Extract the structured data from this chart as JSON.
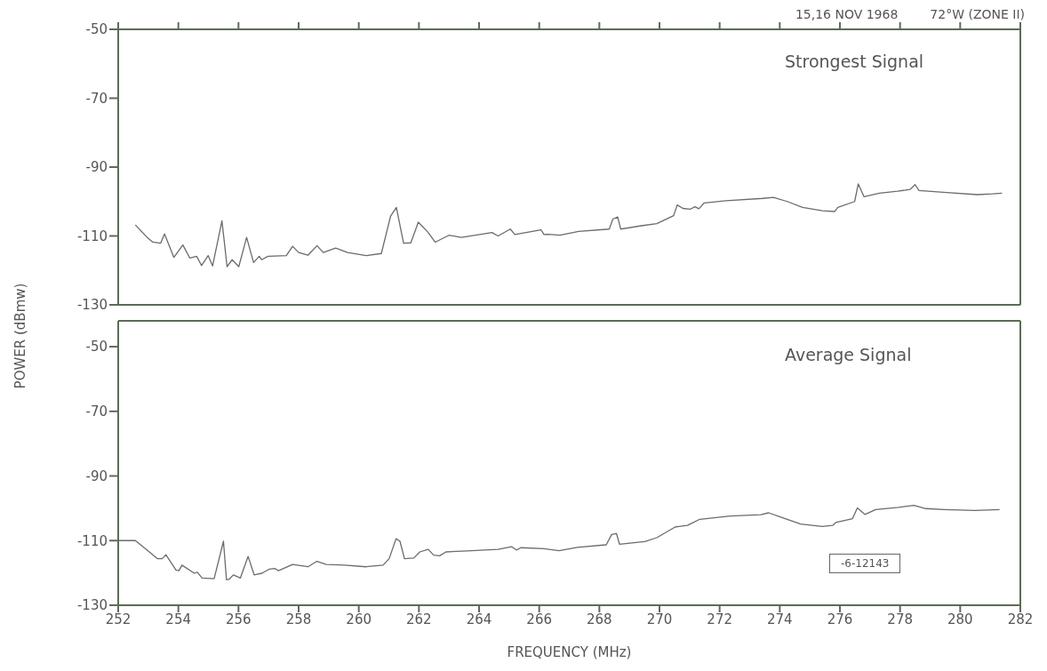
{
  "chart_data": [
    {
      "type": "line",
      "title": "Strongest Signal",
      "ylabel": "POWER (dBmw)",
      "annotations": [
        "15,16 NOV 1968",
        "72°W (ZONE II)"
      ],
      "color": "#6b6b6b",
      "xlim": [
        252,
        282
      ],
      "xticks": [
        252,
        254,
        256,
        258,
        260,
        262,
        264,
        266,
        268,
        270,
        272,
        274,
        276,
        278,
        280,
        282
      ],
      "ylim": [
        -130,
        -50
      ],
      "yticks": [
        -130,
        -110,
        -90,
        -70,
        -50
      ],
      "tick_labels": "y",
      "marker": "none",
      "x": [
        252.57,
        252.95,
        253.15,
        253.41,
        253.54,
        253.85,
        254.15,
        254.38,
        254.61,
        254.77,
        254.99,
        255.14,
        255.45,
        255.62,
        255.79,
        256.01,
        256.27,
        256.5,
        256.69,
        256.77,
        256.98,
        257.59,
        257.8,
        258.0,
        258.31,
        258.61,
        258.82,
        259.23,
        259.63,
        260.25,
        260.75,
        261.06,
        261.25,
        261.49,
        261.73,
        261.98,
        262.29,
        262.54,
        263.0,
        263.41,
        264.02,
        264.43,
        264.63,
        265.04,
        265.19,
        266.06,
        266.16,
        266.29,
        266.69,
        267.31,
        268.33,
        268.45,
        268.61,
        268.71,
        269.35,
        269.91,
        270.47,
        270.59,
        270.78,
        271.03,
        271.18,
        271.31,
        271.49,
        272.2,
        273.43,
        273.79,
        274.25,
        274.76,
        275.42,
        275.83,
        275.93,
        276.49,
        276.61,
        276.8,
        277.31,
        277.92,
        278.33,
        278.5,
        278.63,
        279.55,
        280.57,
        281.08,
        281.39
      ],
      "values": [
        -106.8,
        -110.3,
        -111.8,
        -112.1,
        -109.4,
        -116.2,
        -112.6,
        -116.4,
        -115.9,
        -118.6,
        -115.7,
        -118.7,
        -105.6,
        -118.9,
        -116.9,
        -118.9,
        -110.4,
        -117.7,
        -115.9,
        -116.9,
        -115.9,
        -115.7,
        -113.0,
        -114.8,
        -115.6,
        -112.8,
        -114.8,
        -113.5,
        -114.8,
        -115.7,
        -115.1,
        -104.2,
        -101.7,
        -112.1,
        -112.0,
        -106.0,
        -108.8,
        -111.8,
        -109.8,
        -110.4,
        -109.6,
        -109.0,
        -110.0,
        -108.0,
        -109.6,
        -108.2,
        -109.6,
        -109.5,
        -109.8,
        -108.7,
        -108.0,
        -105.1,
        -104.5,
        -108.0,
        -107.1,
        -106.4,
        -104.1,
        -101.0,
        -102.0,
        -102.2,
        -101.5,
        -102.1,
        -100.4,
        -99.8,
        -99.1,
        -98.8,
        -100.0,
        -101.7,
        -102.7,
        -102.9,
        -101.7,
        -100.0,
        -94.9,
        -98.6,
        -97.6,
        -97.0,
        -96.5,
        -95.1,
        -96.8,
        -97.4,
        -98.0,
        -97.8,
        -97.6
      ]
    },
    {
      "type": "line",
      "title": "Average Signal",
      "xlabel": "FREQUENCY (MHz)",
      "annotations": [
        "-6-12143"
      ],
      "color": "#6b6b6b",
      "xlim": [
        252,
        282
      ],
      "xticks": [
        252,
        254,
        256,
        258,
        260,
        262,
        264,
        266,
        268,
        270,
        272,
        274,
        276,
        278,
        280,
        282
      ],
      "ylim": [
        -130,
        -42
      ],
      "yticks": [
        -130,
        -110,
        -90,
        -70,
        -50
      ],
      "marker": "none",
      "x": [
        252.0,
        252.57,
        252.8,
        253.31,
        253.46,
        253.59,
        253.92,
        254.02,
        254.12,
        254.53,
        254.63,
        254.79,
        255.19,
        255.5,
        255.6,
        255.7,
        255.83,
        256.06,
        256.32,
        256.52,
        256.78,
        257.03,
        257.2,
        257.33,
        257.8,
        258.31,
        258.61,
        258.92,
        259.53,
        260.24,
        260.81,
        261.01,
        261.24,
        261.37,
        261.52,
        261.83,
        262.03,
        262.31,
        262.49,
        262.69,
        262.9,
        263.61,
        264.63,
        265.09,
        265.24,
        265.39,
        266.16,
        266.66,
        267.27,
        268.23,
        268.41,
        268.57,
        268.67,
        269.51,
        269.91,
        270.52,
        270.93,
        271.34,
        272.35,
        273.37,
        273.63,
        274.08,
        274.69,
        275.41,
        275.76,
        275.86,
        276.42,
        276.58,
        276.83,
        277.19,
        277.95,
        278.46,
        278.86,
        279.47,
        280.49,
        281.31
      ],
      "values": [
        -110.0,
        -110.0,
        -111.7,
        -115.6,
        -115.6,
        -114.4,
        -119.1,
        -119.3,
        -117.6,
        -120.1,
        -119.8,
        -121.6,
        -121.8,
        -110.2,
        -122.1,
        -121.9,
        -120.6,
        -121.6,
        -114.9,
        -120.6,
        -120.1,
        -118.8,
        -118.6,
        -119.3,
        -117.4,
        -118.1,
        -116.4,
        -117.4,
        -117.6,
        -118.1,
        -117.6,
        -115.6,
        -109.4,
        -110.2,
        -115.6,
        -115.4,
        -113.5,
        -112.7,
        -114.5,
        -114.7,
        -113.5,
        -113.2,
        -112.7,
        -111.9,
        -112.9,
        -112.2,
        -112.5,
        -113.1,
        -112.1,
        -111.3,
        -108.1,
        -107.8,
        -111.1,
        -110.3,
        -109.1,
        -105.8,
        -105.3,
        -103.4,
        -102.4,
        -102.0,
        -101.4,
        -102.9,
        -104.9,
        -105.6,
        -105.3,
        -104.4,
        -103.2,
        -99.9,
        -101.9,
        -100.4,
        -99.7,
        -99.1,
        -100.1,
        -100.4,
        -100.7,
        -100.4
      ]
    }
  ]
}
